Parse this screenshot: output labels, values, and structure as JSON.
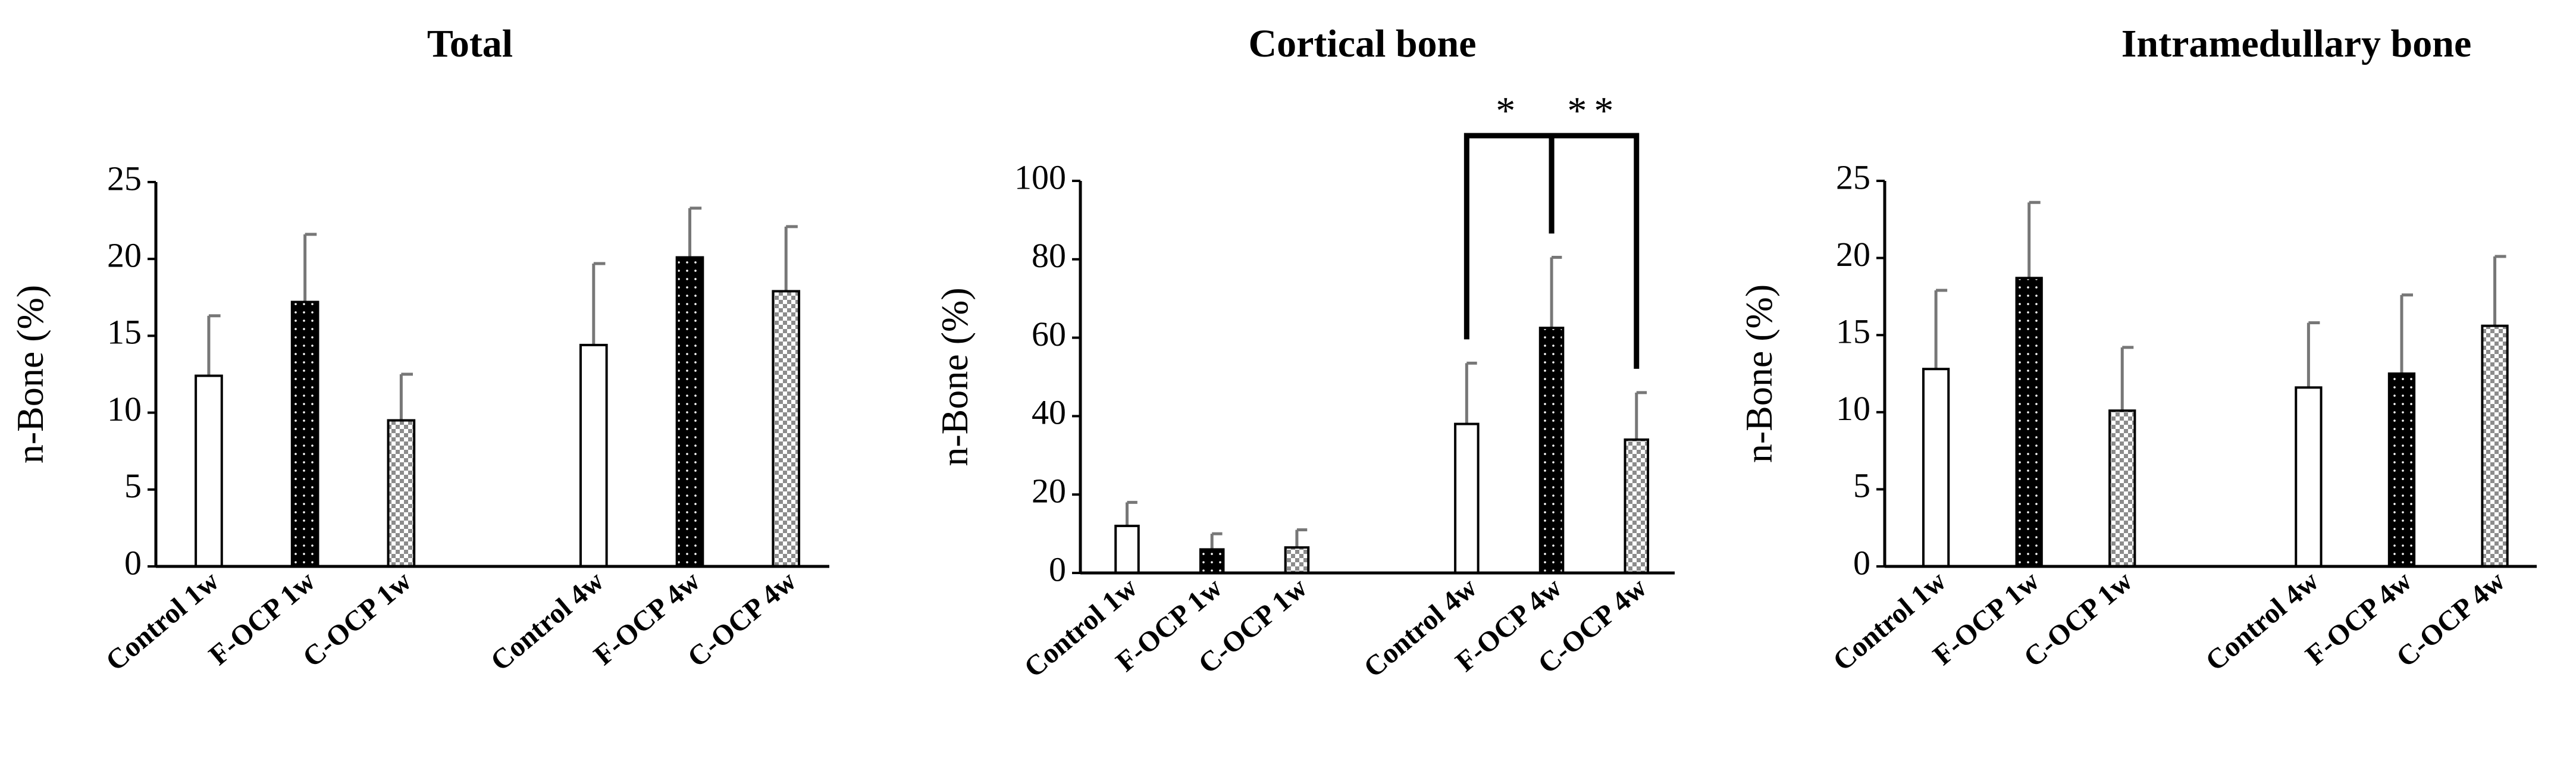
{
  "chart_data": [
    {
      "type": "bar",
      "title": "Total",
      "y_label": "n-Bone (%)",
      "categories": [
        "Control 1w",
        "F-OCP 1w",
        "C-OCP 1w",
        "Control 4w",
        "F-OCP 4w",
        "C-OCP 4w"
      ],
      "values": [
        12.4,
        17.2,
        9.5,
        14.4,
        20.1,
        17.9
      ],
      "errors": [
        3.9,
        4.4,
        3.0,
        5.3,
        3.2,
        4.2
      ],
      "colors": [
        "#ffffff",
        "#000000",
        "#8c8c8c",
        "#ffffff",
        "#000000",
        "#8c8c8c"
      ],
      "ylim": [
        0,
        25
      ],
      "yticks": [
        0,
        5,
        10,
        15,
        20,
        25
      ]
    },
    {
      "type": "bar",
      "title": "Cortical bone",
      "y_label": "n-Bone (%)",
      "categories": [
        "Control 1w",
        "F-OCP 1w",
        "C-OCP 1w",
        "Control 4w",
        "F-OCP 4w",
        "C-OCP 4w"
      ],
      "values": [
        12,
        6,
        6.5,
        38,
        62.5,
        34
      ],
      "errors": [
        6,
        4,
        4.5,
        15.5,
        18,
        12
      ],
      "colors": [
        "#ffffff",
        "#000000",
        "#8c8c8c",
        "#ffffff",
        "#000000",
        "#8c8c8c"
      ],
      "ylim": [
        0,
        100
      ],
      "yticks": [
        0,
        20,
        40,
        60,
        80,
        100
      ],
      "annotations": [
        {
          "label": "*",
          "from": 3,
          "to": 4
        },
        {
          "label": "**",
          "from": 4,
          "to": 5
        }
      ]
    },
    {
      "type": "bar",
      "title": "Intramedullary bone",
      "y_label": "n-Bone (%)",
      "categories": [
        "Control 1w",
        "F-OCP 1w",
        "C-OCP 1w",
        "Control 4w",
        "F-OCP 4w",
        "C-OCP 4w"
      ],
      "values": [
        12.8,
        18.7,
        10.1,
        11.6,
        12.5,
        15.6
      ],
      "errors": [
        5.1,
        4.9,
        4.1,
        4.2,
        5.1,
        4.5
      ],
      "colors": [
        "#ffffff",
        "#000000",
        "#8c8c8c",
        "#ffffff",
        "#000000",
        "#8c8c8c"
      ],
      "ylim": [
        0,
        25
      ],
      "yticks": [
        0,
        5,
        10,
        15,
        20,
        25
      ]
    }
  ]
}
